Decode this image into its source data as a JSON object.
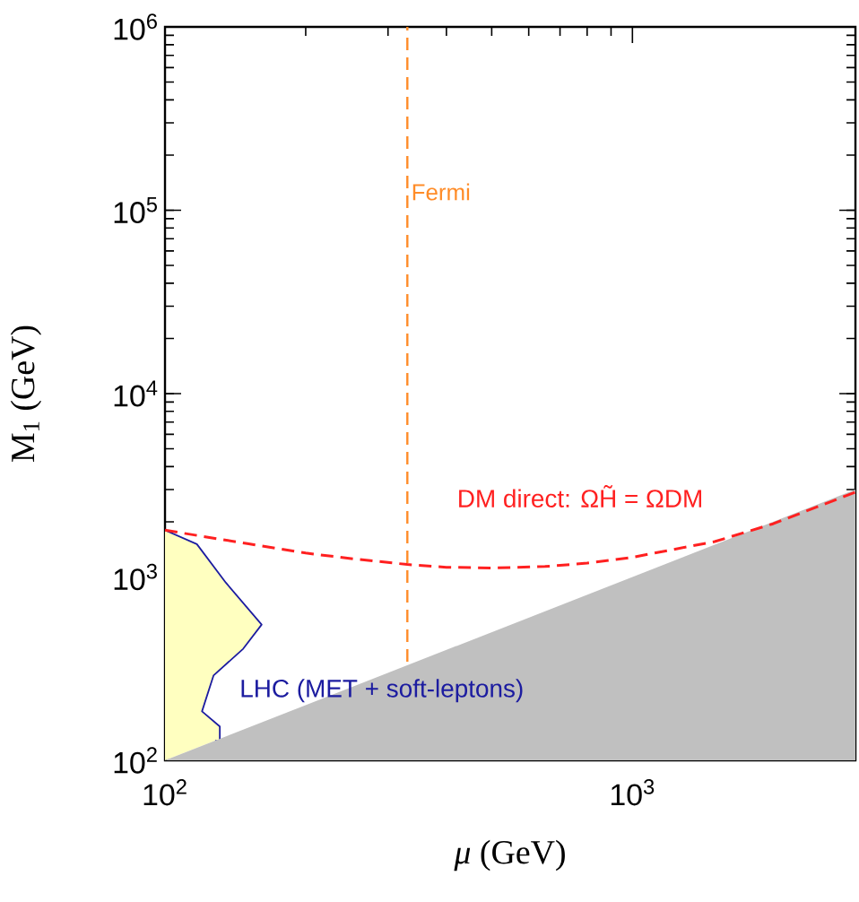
{
  "chart_data": {
    "type": "line",
    "xlabel": "*μ* (GeV)",
    "ylabel": "M$_{1}$ (GeV)",
    "log": "xy",
    "xlim": [
      100,
      3000
    ],
    "ylim": [
      100,
      1000000
    ],
    "xticks": [
      {
        "value": 100,
        "label": "10$^{2}$"
      },
      {
        "value": 1000,
        "label": "10$^{3}$"
      }
    ],
    "yticks": [
      {
        "value": 100,
        "label": "10$^{2}$"
      },
      {
        "value": 1000,
        "label": "10$^{3}$"
      },
      {
        "value": 10000,
        "label": "10$^{4}$"
      },
      {
        "value": 100000,
        "label": "10$^{5}$"
      },
      {
        "value": 1000000,
        "label": "10$^{6}$"
      }
    ],
    "series": [
      {
        "type": "area",
        "color": "#ffffc0",
        "x": [
          100,
          117,
          135,
          161,
          147,
          127,
          120,
          131,
          131,
          128,
          100
        ],
        "values": [
          1800,
          1510,
          930,
          550,
          406,
          290,
          185,
          153,
          127,
          128,
          100
        ]
      },
      {
        "name": "LHC (MET + soft-leptons)",
        "color": "#1c1ca0",
        "line_style": "solid",
        "x": [
          100,
          117,
          135,
          161,
          147,
          127,
          120,
          131,
          131,
          128
        ],
        "values": [
          1800,
          1510,
          930,
          550,
          406,
          290,
          185,
          153,
          127,
          128
        ]
      },
      {
        "type": "area",
        "color": "#c0c0c0",
        "x": [
          100,
          3000,
          3000
        ],
        "values": [
          100,
          3000,
          100
        ]
      },
      {
        "name": "DM direct: ΩH̃ = ΩDM",
        "color": "#ff2020",
        "line_style": "dashed",
        "x": [
          100,
          150,
          200,
          250,
          330,
          400,
          500,
          650,
          800,
          1000,
          1500,
          2000,
          3000
        ],
        "values": [
          1800,
          1520,
          1350,
          1260,
          1170,
          1130,
          1120,
          1140,
          1190,
          1280,
          1560,
          1950,
          2900
        ]
      }
    ],
    "ref_lines": [
      {
        "axis": "x",
        "value": 330,
        "label": "Fermi",
        "color": "#ff8c28",
        "line_style": "dashed"
      }
    ]
  }
}
